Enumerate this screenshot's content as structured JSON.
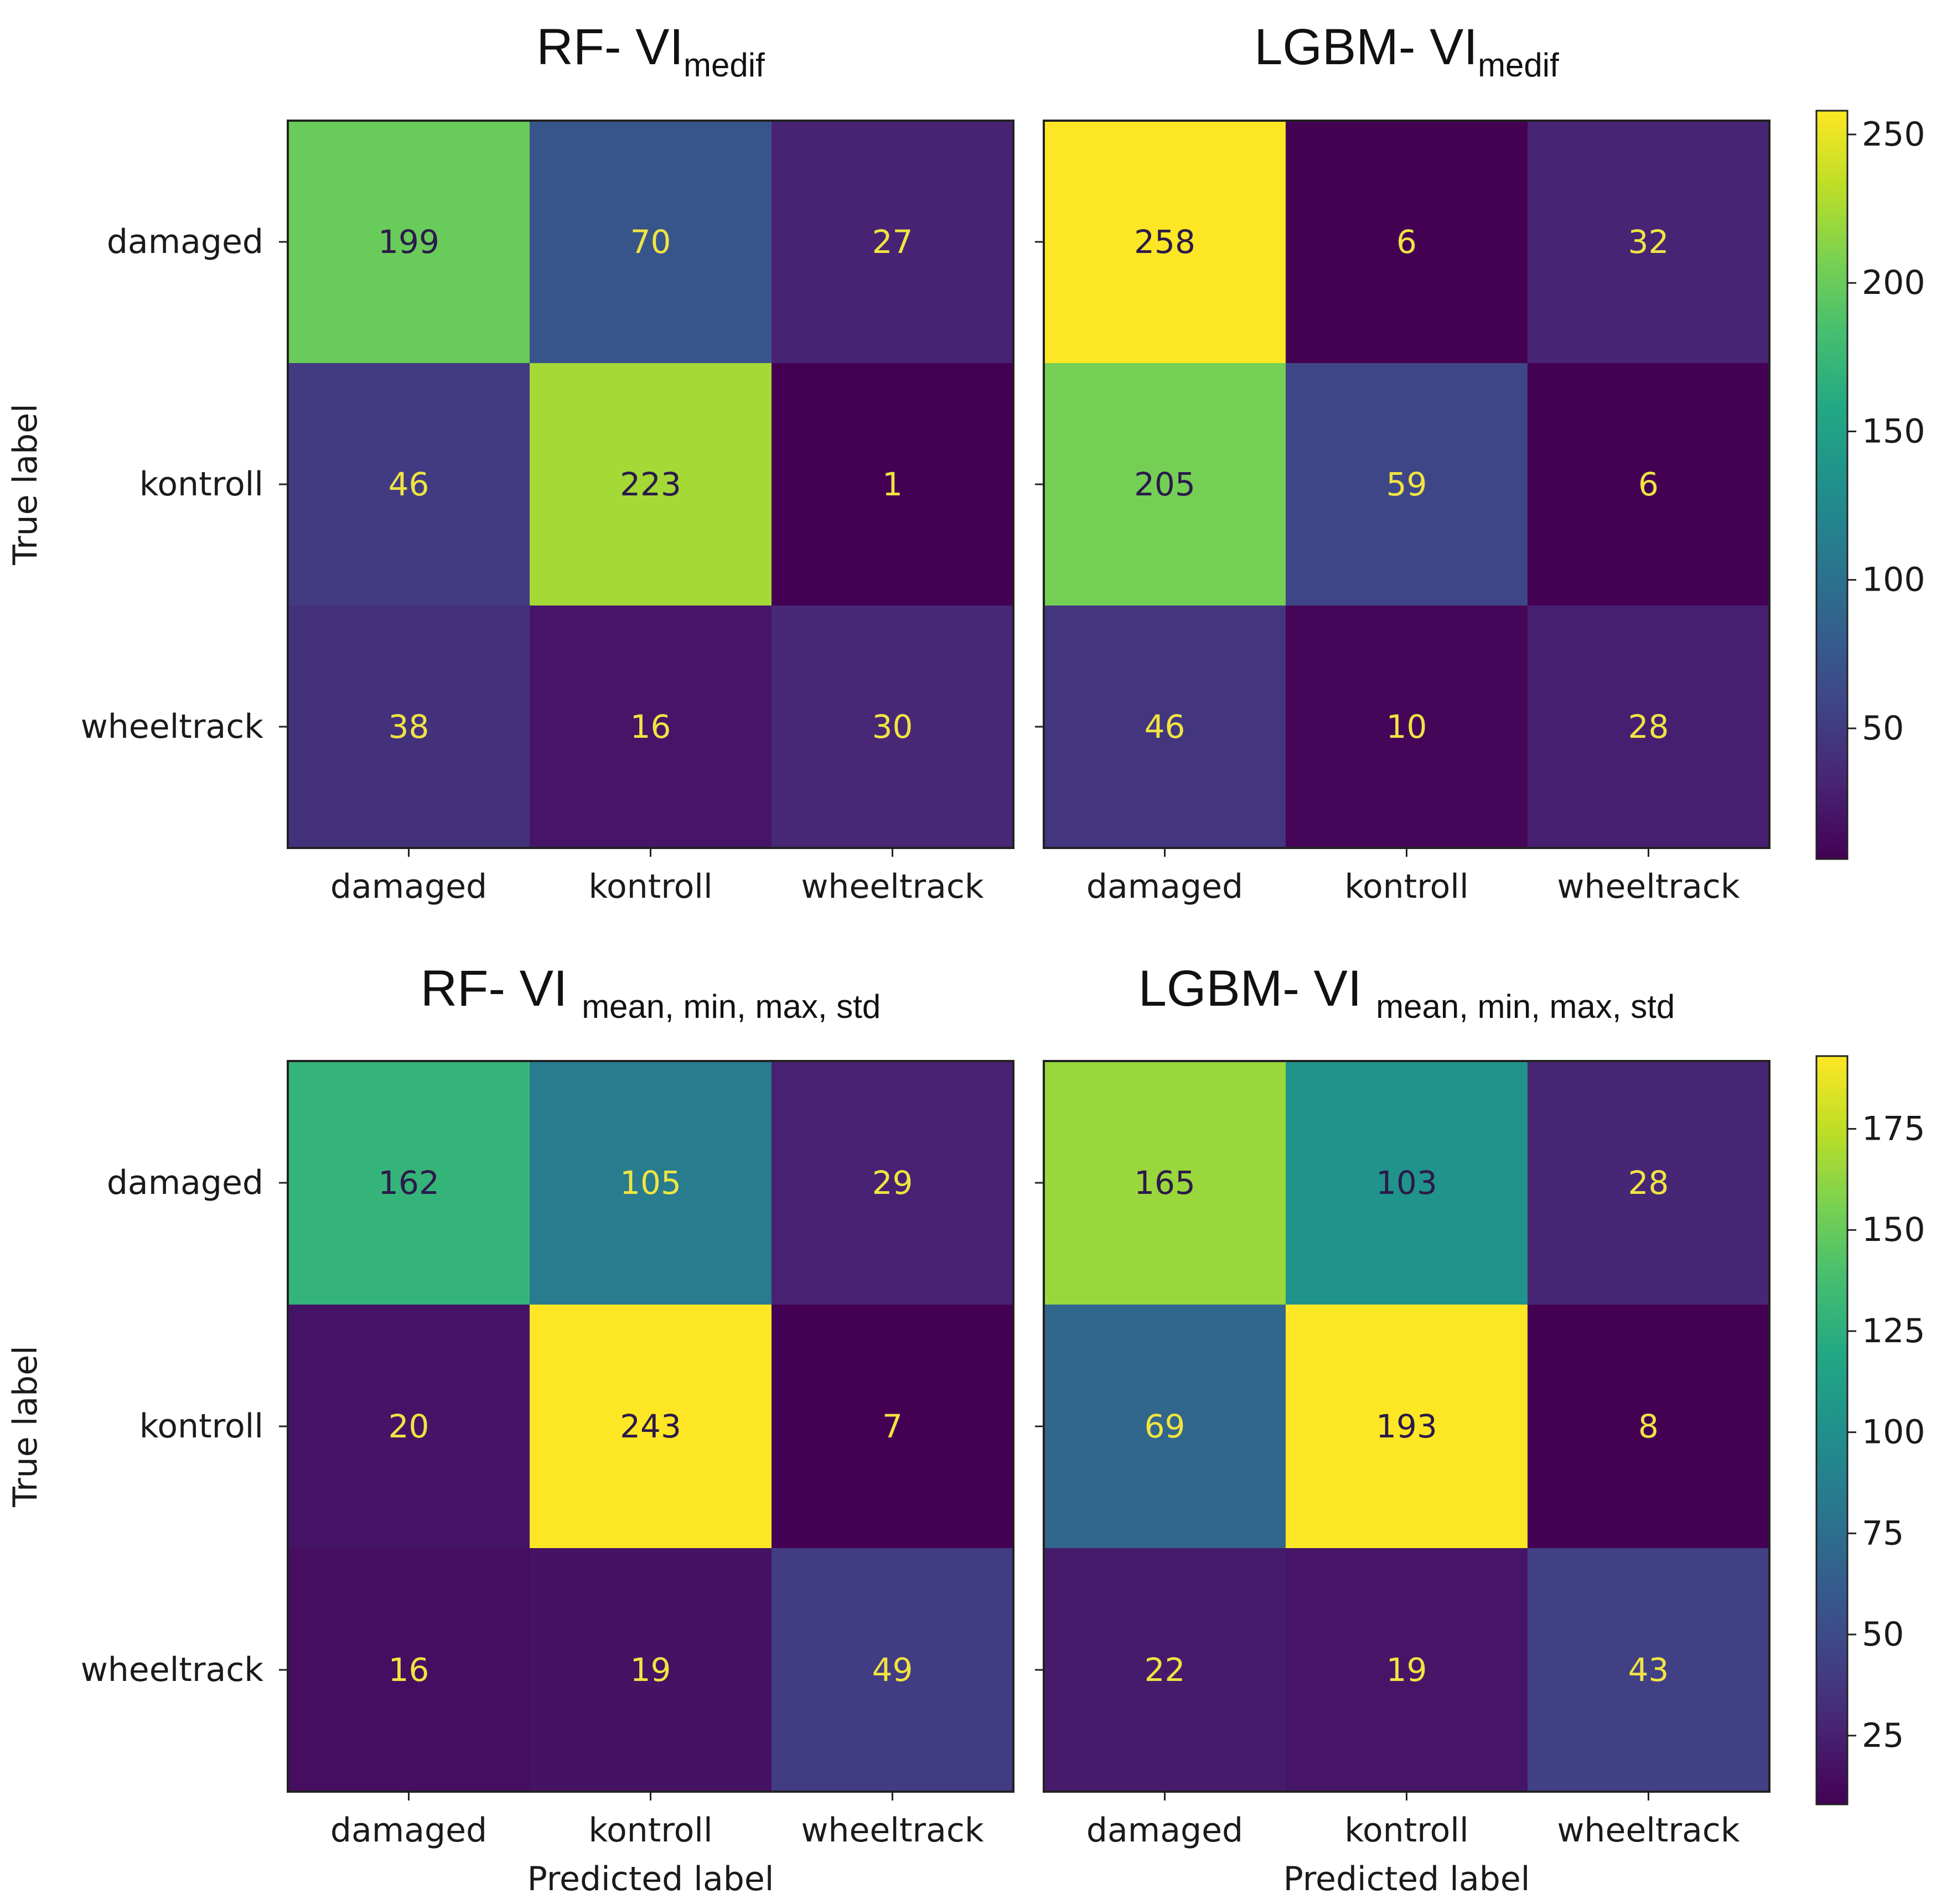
{
  "colormap": "viridis",
  "chart_data": [
    {
      "type": "heatmap",
      "title_main": "RF- VI",
      "title_sub": "medif",
      "xlabel": "",
      "ylabel": "True label",
      "x_categories": [
        "damaged",
        "kontroll",
        "wheeltrack"
      ],
      "y_categories": [
        "damaged",
        "kontroll",
        "wheeltrack"
      ],
      "values": [
        [
          199,
          70,
          27
        ],
        [
          46,
          223,
          1
        ],
        [
          38,
          16,
          30
        ]
      ],
      "color_range": [
        1,
        258
      ]
    },
    {
      "type": "heatmap",
      "title_main": "LGBM- VI",
      "title_sub": "medif",
      "xlabel": "",
      "ylabel": "",
      "x_categories": [
        "damaged",
        "kontroll",
        "wheeltrack"
      ],
      "y_categories": [
        "damaged",
        "kontroll",
        "wheeltrack"
      ],
      "values": [
        [
          258,
          6,
          32
        ],
        [
          205,
          59,
          6
        ],
        [
          46,
          10,
          28
        ]
      ],
      "color_range": [
        6,
        258
      ],
      "colorbar_ticks": [
        50,
        100,
        150,
        200,
        250
      ]
    },
    {
      "type": "heatmap",
      "title_main": "RF- VI",
      "title_sub": "mean, min, max, std",
      "xlabel": "Predicted label",
      "ylabel": "True label",
      "x_categories": [
        "damaged",
        "kontroll",
        "wheeltrack"
      ],
      "y_categories": [
        "damaged",
        "kontroll",
        "wheeltrack"
      ],
      "values": [
        [
          162,
          105,
          29
        ],
        [
          20,
          243,
          7
        ],
        [
          16,
          19,
          49
        ]
      ],
      "color_range": [
        7,
        243
      ]
    },
    {
      "type": "heatmap",
      "title_main": "LGBM- VI",
      "title_sub": "mean, min, max, std",
      "xlabel": "Predicted label",
      "ylabel": "",
      "x_categories": [
        "damaged",
        "kontroll",
        "wheeltrack"
      ],
      "y_categories": [
        "damaged",
        "kontroll",
        "wheeltrack"
      ],
      "values": [
        [
          165,
          103,
          28
        ],
        [
          69,
          193,
          8
        ],
        [
          22,
          19,
          43
        ]
      ],
      "color_range": [
        8,
        193
      ],
      "colorbar_ticks": [
        25,
        50,
        75,
        100,
        125,
        150,
        175
      ]
    }
  ]
}
